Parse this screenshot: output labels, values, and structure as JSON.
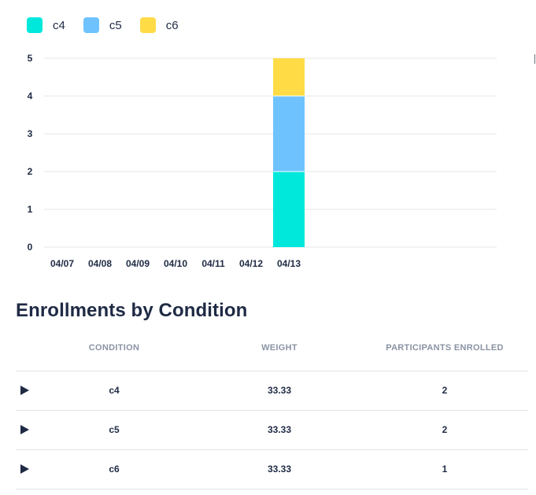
{
  "legend": [
    {
      "label": "c4",
      "color": "#00e8dc"
    },
    {
      "label": "c5",
      "color": "#6ec3ff"
    },
    {
      "label": "c6",
      "color": "#ffdc46"
    }
  ],
  "chart_data": {
    "type": "bar",
    "stacked": true,
    "categories": [
      "04/07",
      "04/08",
      "04/09",
      "04/10",
      "04/11",
      "04/12",
      "04/13"
    ],
    "series": [
      {
        "name": "c4",
        "color": "#00e8dc",
        "values": [
          0,
          0,
          0,
          0,
          0,
          0,
          2
        ]
      },
      {
        "name": "c5",
        "color": "#6ec3ff",
        "values": [
          0,
          0,
          0,
          0,
          0,
          0,
          2
        ]
      },
      {
        "name": "c6",
        "color": "#ffdc46",
        "values": [
          0,
          0,
          0,
          0,
          0,
          0,
          1
        ]
      }
    ],
    "ylim": [
      0,
      5
    ],
    "yticks": [
      0,
      1,
      2,
      3,
      4,
      5
    ],
    "grid": true,
    "legend_position": "top-left"
  },
  "section": {
    "title": "Enrollments by Condition"
  },
  "table": {
    "columns": [
      "CONDITION",
      "WEIGHT",
      "PARTICIPANTS ENROLLED"
    ],
    "rows": [
      {
        "condition": "c4",
        "weight": "33.33",
        "participants": "2"
      },
      {
        "condition": "c5",
        "weight": "33.33",
        "participants": "2"
      },
      {
        "condition": "c6",
        "weight": "33.33",
        "participants": "1"
      }
    ]
  }
}
